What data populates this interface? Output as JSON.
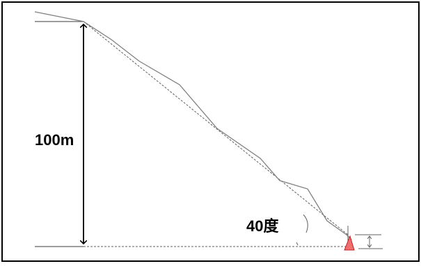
{
  "diagram": {
    "height_label": "100m",
    "angle_label": "40度",
    "colors": {
      "slope_line": "#808080",
      "reference_line": "#606060",
      "height_arrow": "#000000",
      "marker_fill": "#f07070",
      "marker_stroke": "#c02020"
    }
  }
}
